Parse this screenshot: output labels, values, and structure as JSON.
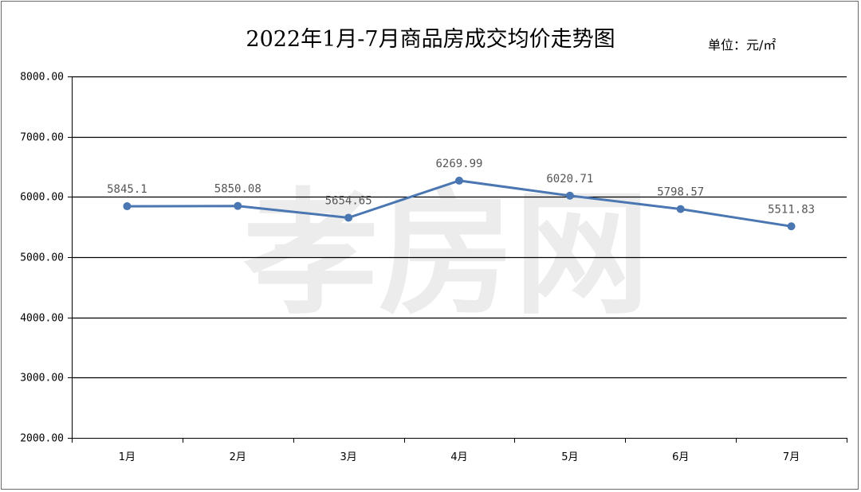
{
  "chart_data": {
    "type": "line",
    "title": "2022年1月-7月商品房成交均价走势图",
    "unit": "单位：元/㎡",
    "categories": [
      "1月",
      "2月",
      "3月",
      "4月",
      "5月",
      "6月",
      "7月"
    ],
    "values": [
      5845.1,
      5850.08,
      5654.65,
      6269.99,
      6020.71,
      5798.57,
      5511.83
    ],
    "data_labels": [
      "5845.1",
      "5850.08",
      "5654.65",
      "6269.99",
      "6020.71",
      "5798.57",
      "5511.83"
    ],
    "ylim": [
      2000,
      8000
    ],
    "yticks": [
      2000,
      3000,
      4000,
      5000,
      6000,
      7000,
      8000
    ],
    "ytick_labels": [
      "2000.00",
      "3000.00",
      "4000.00",
      "5000.00",
      "6000.00",
      "7000.00",
      "8000.00"
    ],
    "grid": true,
    "legend": "none",
    "line_color": "#4a76b2",
    "watermark": "孝房网"
  }
}
